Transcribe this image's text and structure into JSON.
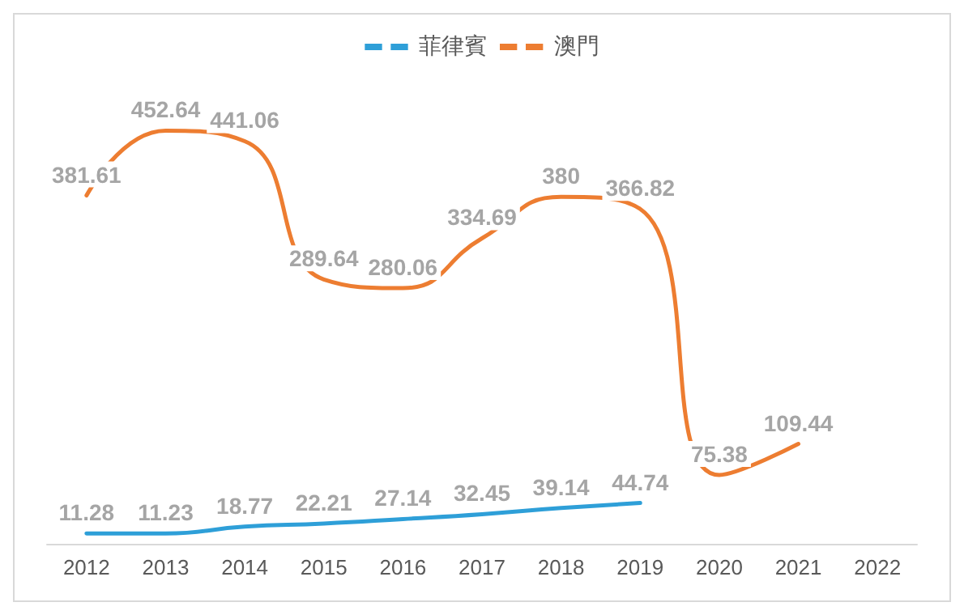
{
  "chart_data": {
    "type": "line",
    "categories": [
      "2012",
      "2013",
      "2014",
      "2015",
      "2016",
      "2017",
      "2018",
      "2019",
      "2020",
      "2021",
      "2022"
    ],
    "series": [
      {
        "name": "菲律賓",
        "color": "#2e9fd8",
        "values": [
          11.28,
          11.23,
          18.77,
          22.21,
          27.14,
          32.45,
          39.14,
          44.74,
          null,
          null,
          null
        ]
      },
      {
        "name": "澳門",
        "color": "#ed7d31",
        "values": [
          381.61,
          452.64,
          441.06,
          289.64,
          280.06,
          334.69,
          380,
          366.82,
          75.38,
          109.44,
          null
        ]
      }
    ],
    "data_labels": true,
    "legend": "top",
    "grid": false,
    "marker": "none"
  }
}
